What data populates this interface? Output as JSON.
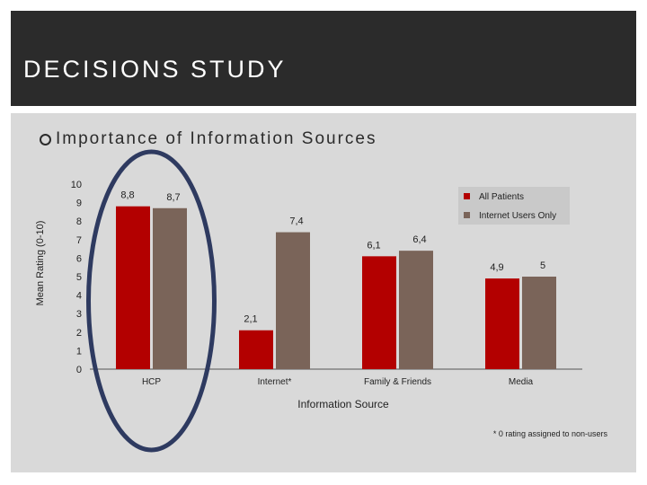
{
  "slide": {
    "title": "DECISIONS STUDY",
    "bullet": "Importance of Information Sources",
    "footnote": "* 0 rating assigned to non-users"
  },
  "colors": {
    "header_bg": "#2b2b2b",
    "panel_bg": "#d9d9d9",
    "series_all_patients": "#b30000",
    "series_internet_users": "#7a6459",
    "highlight_ellipse": "#2e3a60",
    "legend_bg": "#c9c9c9"
  },
  "chart_data": {
    "type": "bar",
    "xlabel": "Information Source",
    "ylabel": "Mean Rating (0-10)",
    "ylim": [
      0,
      10
    ],
    "yticks": [
      "0",
      "1",
      "2",
      "3",
      "4",
      "5",
      "6",
      "7",
      "8",
      "9",
      "10"
    ],
    "categories": [
      "HCP",
      "Internet*",
      "Family & Friends",
      "Media"
    ],
    "series": [
      {
        "name": "All Patients",
        "values": [
          8.8,
          2.1,
          6.1,
          4.9
        ],
        "labels": [
          "8,8",
          "2,1",
          "6,1",
          "4,9"
        ]
      },
      {
        "name": "Internet Users Only",
        "values": [
          8.7,
          7.4,
          6.4,
          5
        ],
        "labels": [
          "8,7",
          "7,4",
          "6,4",
          "5"
        ]
      }
    ],
    "legend": "top-right",
    "grid": false,
    "highlight": "HCP"
  }
}
